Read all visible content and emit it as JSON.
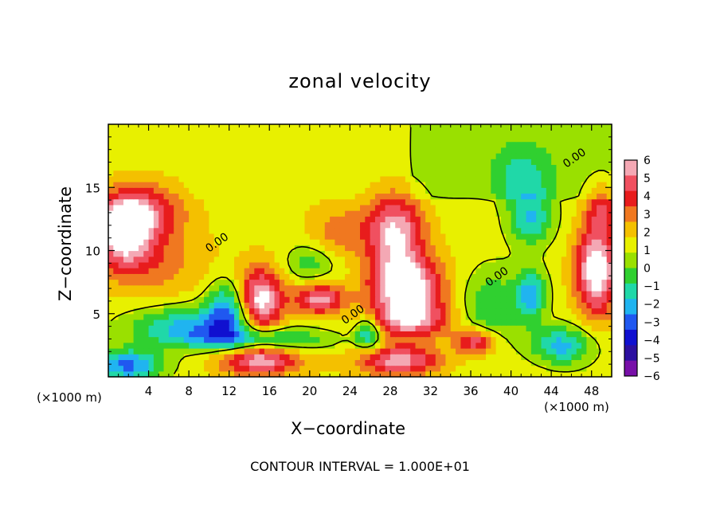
{
  "chart_data": {
    "type": "heatmap",
    "title": "zonal velocity",
    "xlabel": "X−coordinate",
    "ylabel": "Z−coordinate",
    "x_unit_left": "(×1000 m)",
    "x_unit_right": "(×1000 m)",
    "footer": "CONTOUR INTERVAL = 1.000E+01",
    "xlim": [
      0,
      50
    ],
    "ylim": [
      0,
      20
    ],
    "x_ticks": [
      4,
      8,
      12,
      16,
      20,
      24,
      28,
      32,
      36,
      40,
      44,
      48
    ],
    "x_tick_labels": [
      "4",
      "8",
      "12",
      "16",
      "20",
      "24",
      "28",
      "32",
      "36",
      "40",
      "44",
      "48"
    ],
    "y_ticks": [
      5,
      10,
      15
    ],
    "y_tick_labels": [
      "5",
      "10",
      "15"
    ],
    "colorbar": {
      "levels": [
        6,
        5,
        4,
        3,
        2,
        1,
        0,
        -1,
        -2,
        -3,
        -4,
        -5,
        -6
      ],
      "labels": [
        "6",
        "5",
        "4",
        "3",
        "2",
        "1",
        "0",
        "−1",
        "−2",
        "−3",
        "−4",
        "−5",
        "−6"
      ],
      "colors": [
        "#f4a8b4",
        "#f05060",
        "#e81c1c",
        "#f07820",
        "#f4c000",
        "#e8f000",
        "#9ae000",
        "#30d030",
        "#20d8a8",
        "#20b4f0",
        "#2058f0",
        "#1010d0",
        "#2c10a0",
        "#7810a8"
      ]
    },
    "contour_labels": [
      {
        "text": "0.00",
        "x": 11,
        "y": 10.4
      },
      {
        "text": "0.00",
        "x": 24.5,
        "y": 4.7
      },
      {
        "text": "0.00",
        "x": 38.8,
        "y": 7.7
      },
      {
        "text": "0.00",
        "x": 46.5,
        "y": 17.1
      }
    ],
    "features": [
      {
        "v": 6,
        "x": 1.5,
        "y": 11.5,
        "sx": 2.8,
        "sy": 2.6
      },
      {
        "v": 3.5,
        "x": 3.5,
        "y": 13.2,
        "sx": 4,
        "sy": 2.2
      },
      {
        "v": 2,
        "x": 4.5,
        "y": 9,
        "sx": 5,
        "sy": 3
      },
      {
        "v": -4,
        "x": 8,
        "y": 4,
        "sx": 6,
        "sy": 1.6
      },
      {
        "v": -4.5,
        "x": 12,
        "y": 5.5,
        "sx": 2.2,
        "sy": 2.2
      },
      {
        "v": 6.5,
        "x": 15,
        "y": 6,
        "sx": 2.3,
        "sy": 2.5
      },
      {
        "v": 5,
        "x": 15,
        "y": 1.3,
        "sx": 4,
        "sy": 1.2
      },
      {
        "v": -3.5,
        "x": 15,
        "y": 3,
        "sx": 7,
        "sy": 0.9
      },
      {
        "v": -5,
        "x": 2,
        "y": 0.9,
        "sx": 3.5,
        "sy": 1.3
      },
      {
        "v": 5,
        "x": 21,
        "y": 6.2,
        "sx": 2.5,
        "sy": 1.2
      },
      {
        "v": 5.5,
        "x": 28.5,
        "y": 11.5,
        "sx": 2.8,
        "sy": 3
      },
      {
        "v": 6.5,
        "x": 29.5,
        "y": 7.2,
        "sx": 3.5,
        "sy": 2.3
      },
      {
        "v": 4.5,
        "x": 30,
        "y": 4.5,
        "sx": 4,
        "sy": 1.5
      },
      {
        "v": -4,
        "x": 25.8,
        "y": 3.5,
        "sx": 1.3,
        "sy": 1.3
      },
      {
        "v": -2.5,
        "x": 38,
        "y": 5.5,
        "sx": 3,
        "sy": 3
      },
      {
        "v": -3.5,
        "x": 42,
        "y": 12.5,
        "sx": 2.2,
        "sy": 2
      },
      {
        "v": -2.5,
        "x": 41,
        "y": 16,
        "sx": 3,
        "sy": 2.5
      },
      {
        "v": 6.5,
        "x": 48.5,
        "y": 8.5,
        "sx": 2,
        "sy": 3.5
      },
      {
        "v": 3,
        "x": 49,
        "y": 13.5,
        "sx": 1.5,
        "sy": 2
      },
      {
        "v": 4.5,
        "x": 36.5,
        "y": 2.8,
        "sx": 2,
        "sy": 1
      },
      {
        "v": 5,
        "x": 29,
        "y": 1.3,
        "sx": 4,
        "sy": 1.2
      },
      {
        "v": -4,
        "x": 42,
        "y": 6.5,
        "sx": 1.5,
        "sy": 2
      },
      {
        "v": -4,
        "x": 45,
        "y": 2.5,
        "sx": 3,
        "sy": 1.5
      },
      {
        "v": 2,
        "x": 23,
        "y": 11.5,
        "sx": 3,
        "sy": 2
      },
      {
        "v": -2,
        "x": 20,
        "y": 9,
        "sx": 2.5,
        "sy": 1.5
      }
    ]
  }
}
